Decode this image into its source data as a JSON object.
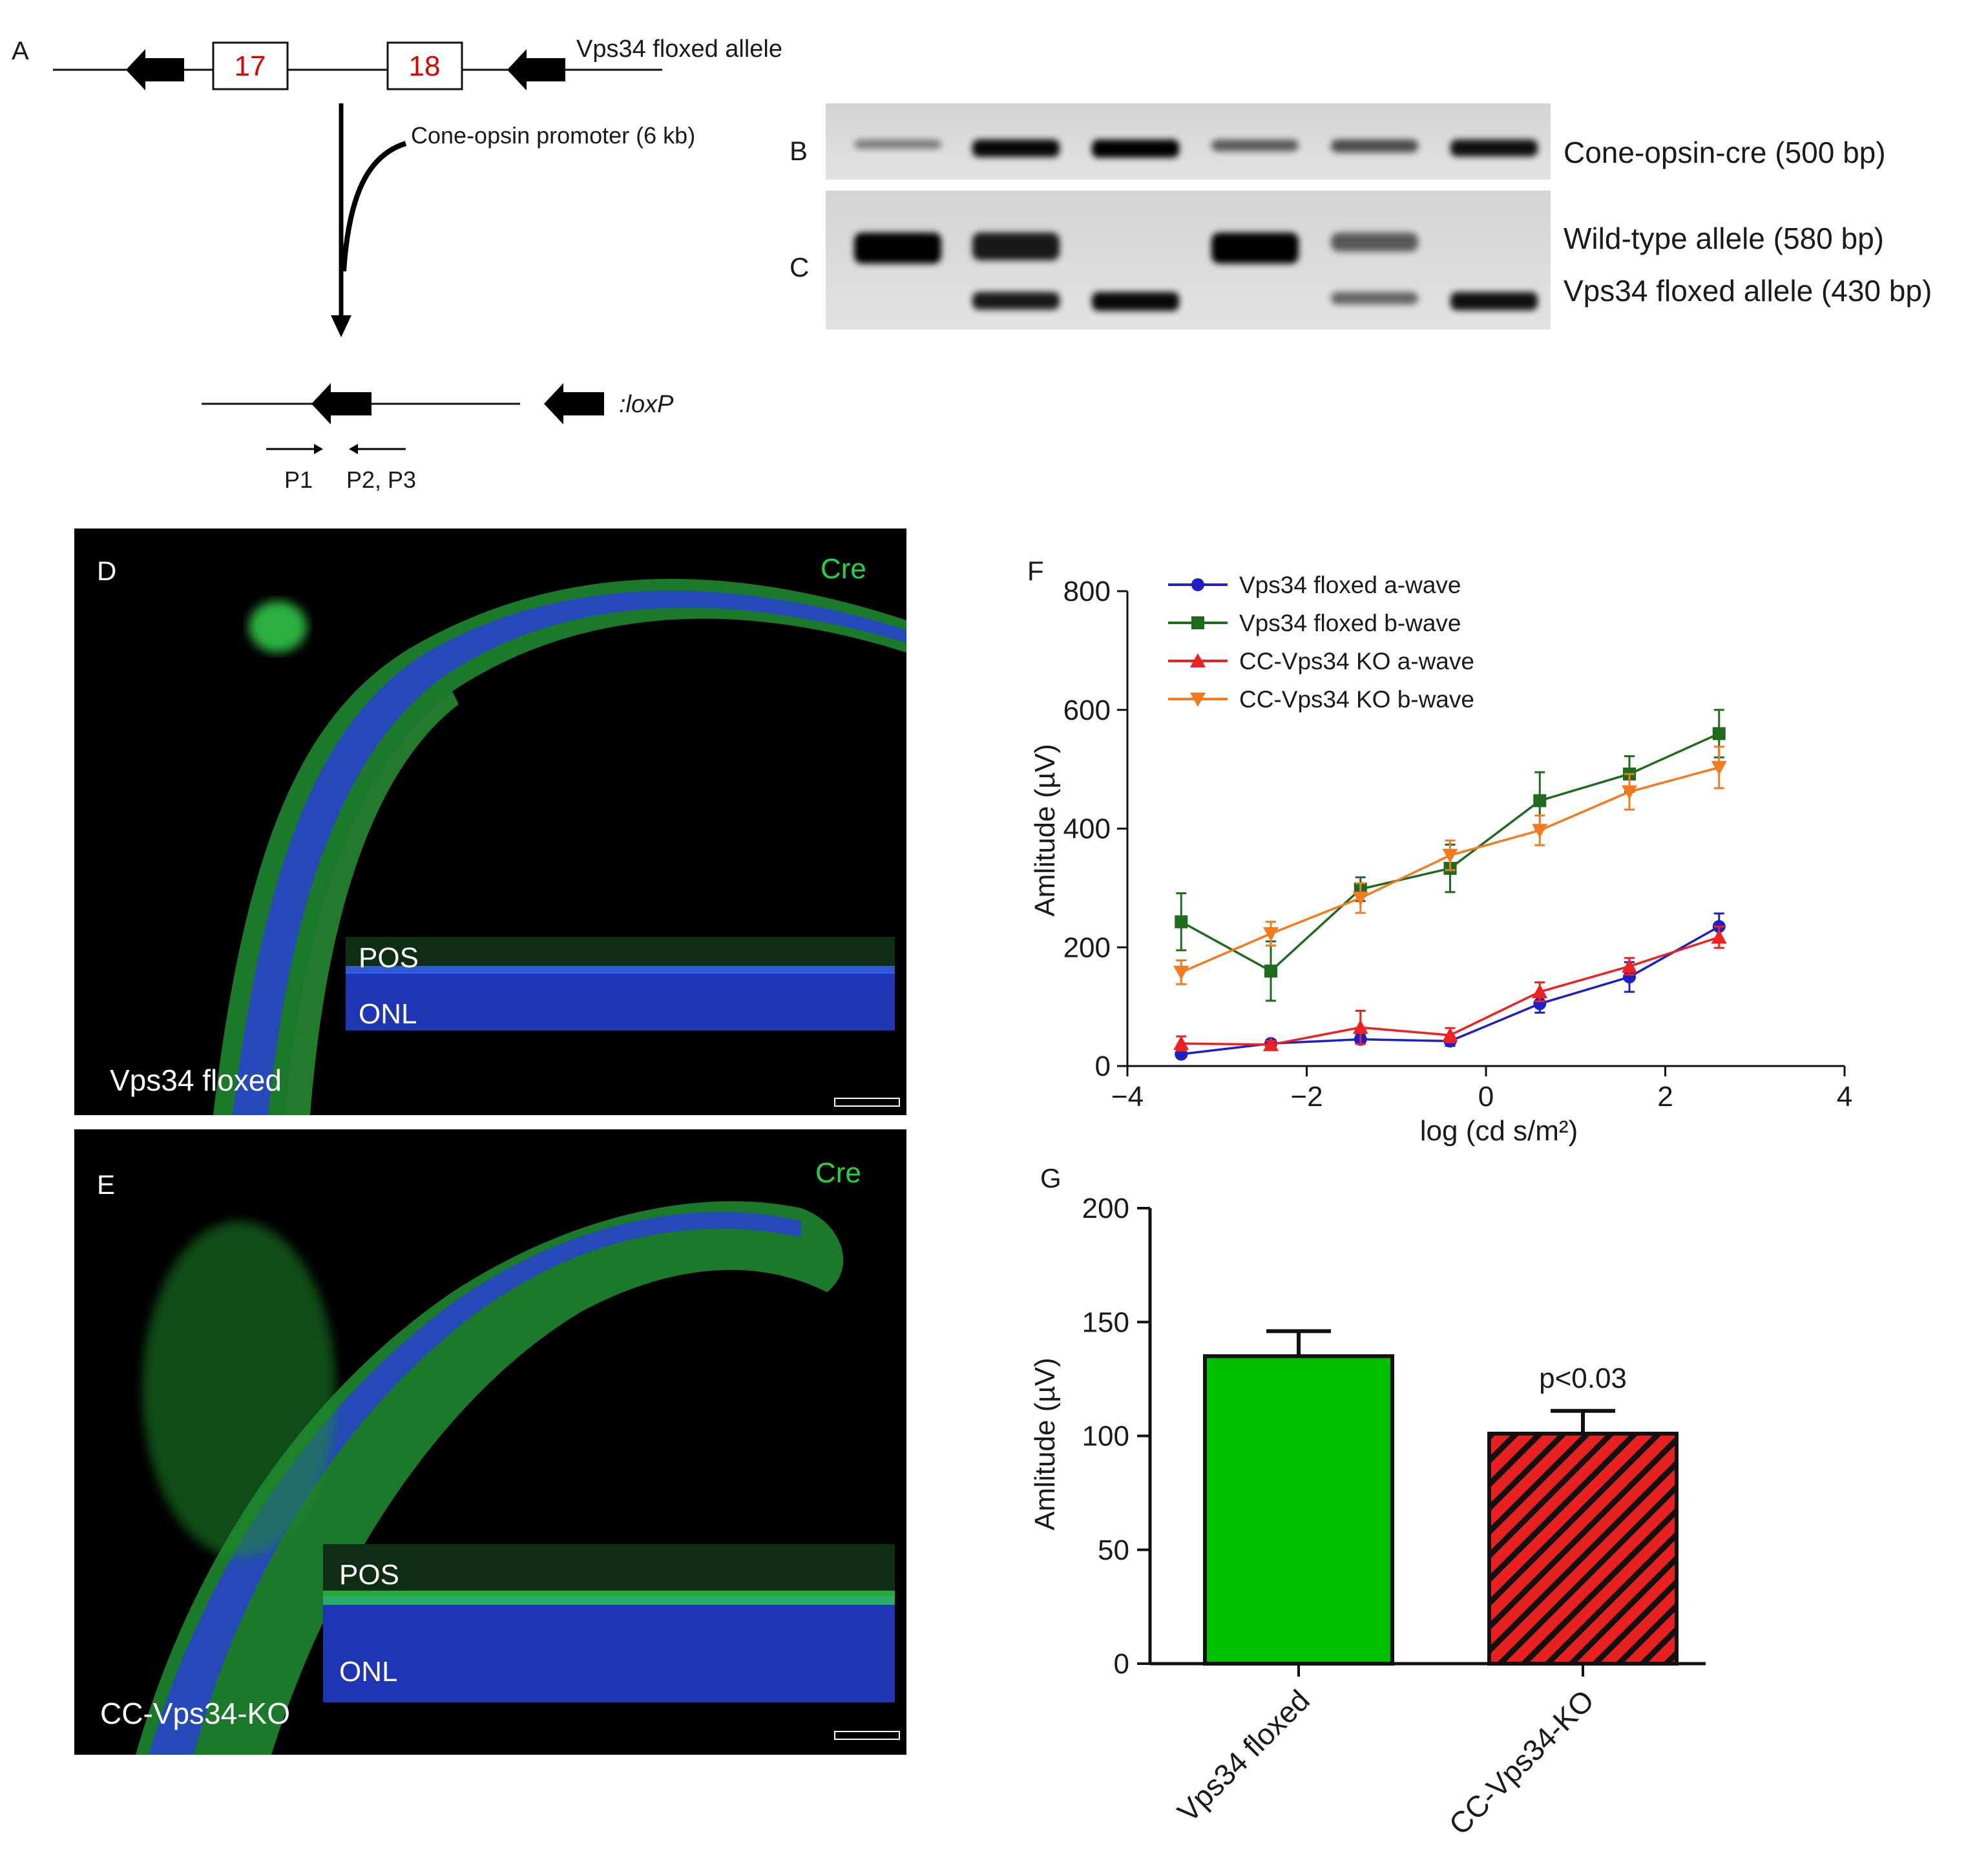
{
  "panels": {
    "A": {
      "letter": "A",
      "exon1": "17",
      "exon2": "18",
      "allele_label": "Vps34 floxed allele",
      "promoter_label": "Cone-opsin promoter (6 kb)",
      "loxp_label": ":loxP",
      "primer1": "P1",
      "primer2": "P2, P3"
    },
    "B": {
      "letter": "B",
      "band_label": "Cone-opsin-cre (500 bp)"
    },
    "C": {
      "letter": "C",
      "band_wt": "Wild-type allele (580 bp)",
      "band_flox": "Vps34 floxed allele (430 bp)"
    },
    "D": {
      "letter": "D",
      "stain": "Cre",
      "inset_top": "POS",
      "inset_bottom": "ONL",
      "caption": "Vps34 floxed"
    },
    "E": {
      "letter": "E",
      "stain": "Cre",
      "inset_top": "POS",
      "inset_bottom": "ONL",
      "caption": "CC-Vps34-KO"
    },
    "F": {
      "letter": "F"
    },
    "G": {
      "letter": "G"
    }
  },
  "gel": {
    "lane_count": 6,
    "b_band_intensity": [
      0.25,
      0.95,
      1.0,
      0.45,
      0.55,
      0.9
    ],
    "c_wt_intensity": [
      1.0,
      0.85,
      0.0,
      1.0,
      0.45,
      0.0
    ],
    "c_flox_intensity": [
      0.0,
      0.85,
      0.95,
      0.0,
      0.4,
      0.9
    ]
  },
  "chart_data": [
    {
      "type": "line",
      "panel": "F",
      "xlabel": "log (cd s/m²)",
      "ylabel": "Amlitude (µV)",
      "xlim": [
        -4,
        4
      ],
      "ylim": [
        0,
        800
      ],
      "xticks": [
        -4,
        -2,
        0,
        2,
        4
      ],
      "yticks": [
        0,
        200,
        400,
        600,
        800
      ],
      "legend_position": "top-left",
      "x": [
        -3.4,
        -2.4,
        -1.4,
        -0.4,
        0.6,
        1.6,
        2.6
      ],
      "series": [
        {
          "name": "Vps34 floxed a-wave",
          "color": "#1f1fc8",
          "marker": "circle",
          "values": [
            20,
            38,
            45,
            42,
            105,
            150,
            235
          ],
          "err": [
            5,
            6,
            8,
            8,
            15,
            25,
            22
          ]
        },
        {
          "name": "Vps34 floxed b-wave",
          "color": "#1e6b1e",
          "marker": "square",
          "values": [
            243,
            160,
            298,
            333,
            447,
            492,
            560
          ],
          "err": [
            48,
            50,
            20,
            40,
            48,
            30,
            40
          ]
        },
        {
          "name": "CC-Vps34 KO a-wave",
          "color": "#ee2020",
          "marker": "triangle-up",
          "values": [
            38,
            36,
            65,
            52,
            125,
            168,
            217
          ],
          "err": [
            12,
            6,
            28,
            12,
            16,
            14,
            18
          ]
        },
        {
          "name": "CC-Vps34 KO b-wave",
          "color": "#f47a1f",
          "marker": "triangle-down",
          "values": [
            158,
            223,
            283,
            355,
            397,
            462,
            503
          ],
          "err": [
            20,
            20,
            25,
            25,
            25,
            30,
            35
          ]
        }
      ]
    },
    {
      "type": "bar",
      "panel": "G",
      "xlabel": "",
      "ylabel": "Amlitude (µV)",
      "ylim": [
        0,
        200
      ],
      "yticks": [
        0,
        50,
        100,
        150,
        200
      ],
      "categories": [
        "Vps34 floxed",
        "CC-Vps34-KO"
      ],
      "values": [
        135,
        101
      ],
      "err": [
        11,
        10
      ],
      "colors": [
        "#00c000",
        "#e82020"
      ],
      "patterns": [
        "solid",
        "hatched"
      ],
      "annotation": "p<0.03"
    }
  ]
}
